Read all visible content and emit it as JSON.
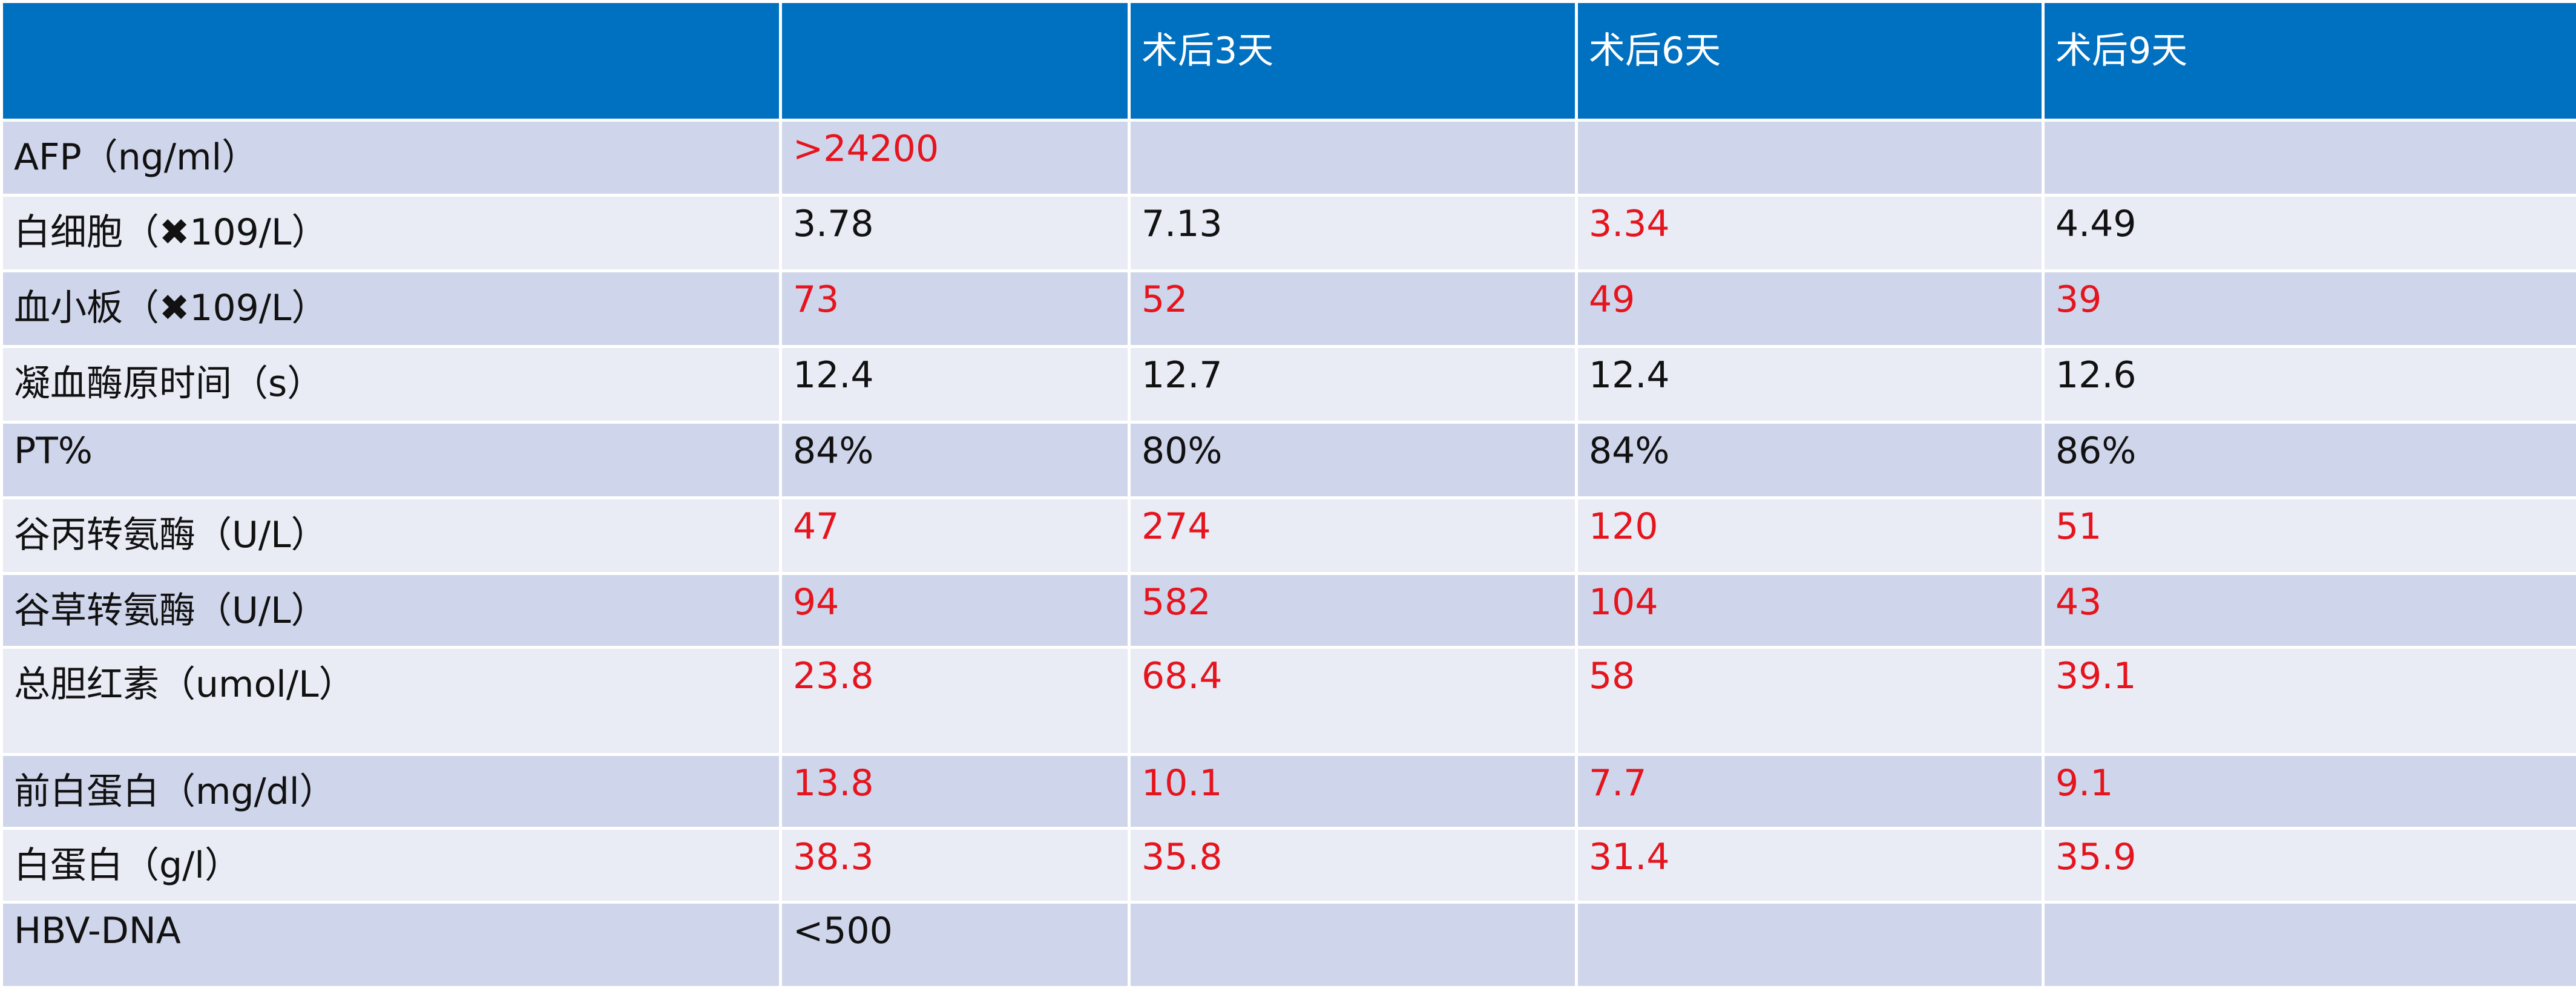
{
  "table": {
    "header_color": "#0070c0",
    "header": [
      null,
      null,
      "术后3天",
      "术后6天",
      "术后9天"
    ],
    "rows": [
      [
        {
          "text": "AFP（ng/ml）"
        },
        {
          "text": ">24200",
          "color": "#e5141d"
        },
        null,
        null,
        null
      ],
      [
        {
          "text": "白细胞（✖109/L）"
        },
        {
          "text": "3.78"
        },
        {
          "text": "7.13"
        },
        {
          "text": "3.34",
          "color": "#e5141d"
        },
        {
          "text": "4.49"
        }
      ],
      [
        {
          "text": "血小板（✖109/L）"
        },
        {
          "text": "73",
          "color": "#e5141d"
        },
        {
          "text": "52",
          "color": "#e5141d"
        },
        {
          "text": "49",
          "color": "#e5141d"
        },
        {
          "text": "39",
          "color": "#e5141d"
        }
      ],
      [
        {
          "text": "凝血酶原时间（s）"
        },
        {
          "text": "12.4"
        },
        {
          "text": "12.7"
        },
        {
          "text": "12.4"
        },
        {
          "text": "12.6"
        }
      ],
      [
        {
          "text": "PT%"
        },
        {
          "text": "84%"
        },
        {
          "text": "80%"
        },
        {
          "text": "84%"
        },
        {
          "text": "86%"
        }
      ],
      [
        {
          "text": "谷丙转氨酶（U/L）"
        },
        {
          "text": "47",
          "color": "#e5141d"
        },
        {
          "text": "274",
          "color": "#e5141d"
        },
        {
          "text": "120",
          "color": "#e5141d"
        },
        {
          "text": "51",
          "color": "#e5141d"
        }
      ],
      [
        {
          "text": "谷草转氨酶（U/L）"
        },
        {
          "text": "94",
          "color": "#e5141d"
        },
        {
          "text": "582",
          "color": "#e5141d"
        },
        {
          "text": "104",
          "color": "#e5141d"
        },
        {
          "text": "43",
          "color": "#e5141d"
        }
      ],
      [
        {
          "text": "总胆红素（umol/L）"
        },
        {
          "text": "23.8",
          "color": "#e5141d"
        },
        {
          "text": "68.4",
          "color": "#e5141d"
        },
        {
          "text": "58",
          "color": "#e5141d"
        },
        {
          "text": "39.1",
          "color": "#e5141d"
        }
      ],
      [
        {
          "text": "前白蛋白（mg/dl）"
        },
        {
          "text": "13.8",
          "color": "#e5141d"
        },
        {
          "text": "10.1",
          "color": "#e5141d"
        },
        {
          "text": "7.7",
          "color": "#e5141d"
        },
        {
          "text": "9.1",
          "color": "#e5141d"
        }
      ],
      [
        {
          "text": "白蛋白（g/l）"
        },
        {
          "text": "38.3",
          "color": "#e5141d"
        },
        {
          "text": "35.8",
          "color": "#e5141d"
        },
        {
          "text": "31.4",
          "color": "#e5141d"
        },
        {
          "text": "35.9",
          "color": "#e5141d"
        }
      ],
      [
        {
          "text": "HBV-DNA"
        },
        {
          "text": "<500"
        },
        null,
        null,
        null
      ]
    ]
  }
}
